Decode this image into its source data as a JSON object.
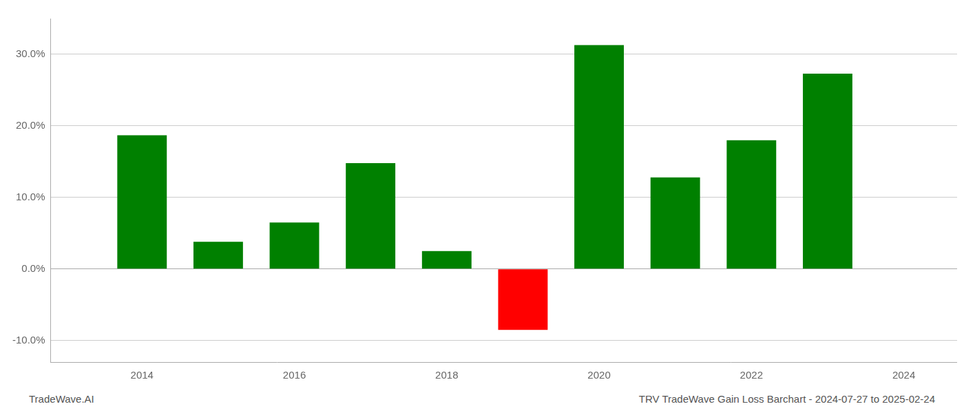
{
  "chart_data": {
    "type": "bar",
    "title": "TRV TradeWave Gain Loss Barchart - 2024-07-27 to 2025-02-24",
    "annotations": [
      "TradeWave.AI"
    ],
    "x": [
      2014,
      2015,
      2016,
      2017,
      2018,
      2019,
      2020,
      2021,
      2022,
      2023
    ],
    "values": [
      18.7,
      3.8,
      6.5,
      14.8,
      2.5,
      -8.5,
      31.3,
      12.8,
      18.0,
      27.3
    ],
    "colors": [
      "#008000",
      "#008000",
      "#008000",
      "#008000",
      "#008000",
      "#ff0000",
      "#008000",
      "#008000",
      "#008000",
      "#008000"
    ],
    "xlim": [
      2012.8,
      2024.7
    ],
    "xticks": [
      2014,
      2016,
      2018,
      2020,
      2022,
      2024
    ],
    "ylim": [
      -13.0,
      35.0
    ],
    "yticks": [
      {
        "value": -10.0,
        "label": "-10.0%"
      },
      {
        "value": 0.0,
        "label": "0.0%"
      },
      {
        "value": 10.0,
        "label": "10.0%"
      },
      {
        "value": 20.0,
        "label": "20.0%"
      },
      {
        "value": 30.0,
        "label": "30.0%"
      }
    ],
    "grid": true
  }
}
